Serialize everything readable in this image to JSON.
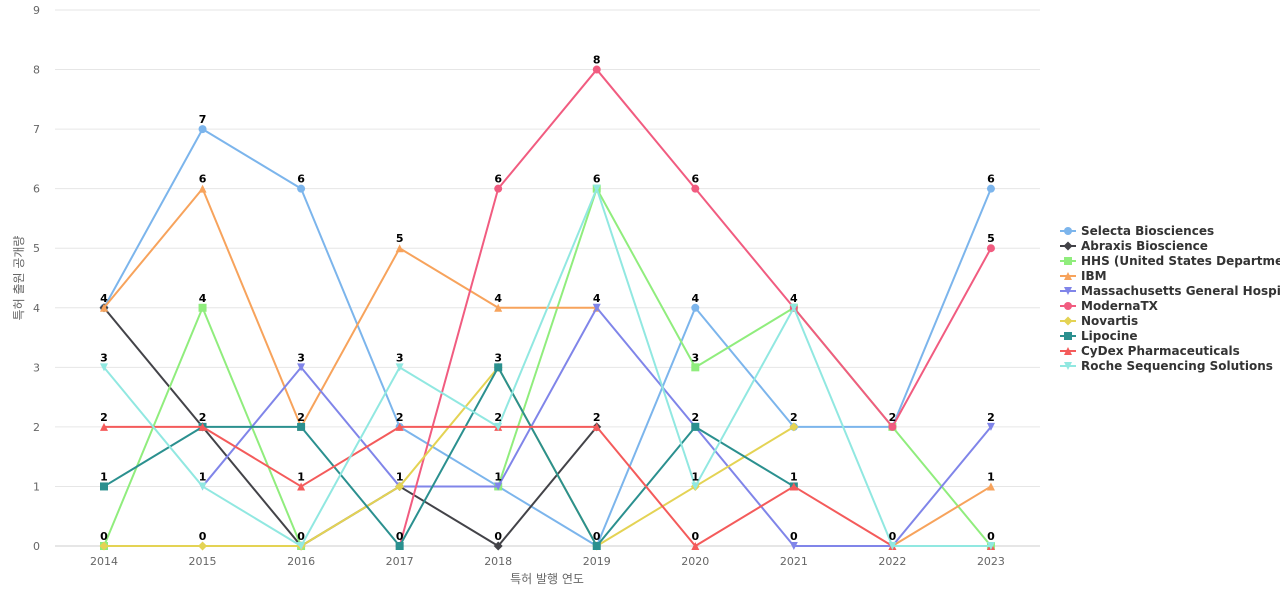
{
  "chart_data": {
    "type": "line",
    "title": "",
    "xlabel": "특허 발행 연도",
    "ylabel": "특허 출원 공개량",
    "x": [
      "2014",
      "2015",
      "2016",
      "2017",
      "2018",
      "2019",
      "2020",
      "2021",
      "2022",
      "2023"
    ],
    "y_ticks": [
      0,
      1,
      2,
      3,
      4,
      5,
      6,
      7,
      8,
      9
    ],
    "ylim": [
      0,
      9
    ],
    "grid": true,
    "legend_position": "right",
    "series": [
      {
        "name": "Selecta Biosciences",
        "legend_label": "Selecta Biosciences",
        "color": "#7cb5ec",
        "marker": "circle",
        "values": [
          4,
          7,
          6,
          2,
          1,
          0,
          4,
          2,
          2,
          6
        ]
      },
      {
        "name": "Abraxis Bioscience",
        "legend_label": "Abraxis Bioscience",
        "color": "#434348",
        "marker": "diamond",
        "values": [
          4,
          2,
          0,
          1,
          0,
          2,
          null,
          null,
          null,
          null
        ]
      },
      {
        "name": "HHS (United States Department of Health and Human Services)",
        "legend_label": "HHS (United States Departme...",
        "color": "#90ed7d",
        "marker": "square",
        "values": [
          0,
          4,
          0,
          null,
          1,
          6,
          3,
          4,
          2,
          0
        ]
      },
      {
        "name": "IBM",
        "legend_label": "IBM",
        "color": "#f7a35c",
        "marker": "triangle",
        "values": [
          4,
          6,
          2,
          5,
          4,
          4,
          null,
          null,
          0,
          1
        ]
      },
      {
        "name": "Massachusetts General Hospital",
        "legend_label": "Massachusetts General Hospi...",
        "color": "#8085e9",
        "marker": "triangle-down",
        "values": [
          null,
          1,
          3,
          1,
          1,
          4,
          2,
          0,
          0,
          2
        ]
      },
      {
        "name": "ModernaTX",
        "legend_label": "ModernaTX",
        "color": "#f15c80",
        "marker": "circle",
        "values": [
          null,
          null,
          null,
          0,
          6,
          8,
          6,
          4,
          2,
          5
        ]
      },
      {
        "name": "Novartis",
        "legend_label": "Novartis",
        "color": "#e4d354",
        "marker": "diamond",
        "values": [
          0,
          0,
          0,
          1,
          3,
          0,
          1,
          2,
          null,
          null
        ]
      },
      {
        "name": "Lipocine",
        "legend_label": "Lipocine",
        "color": "#2b908f",
        "marker": "square",
        "values": [
          1,
          2,
          2,
          0,
          3,
          0,
          2,
          1,
          null,
          null
        ]
      },
      {
        "name": "CyDex Pharmaceuticals",
        "legend_label": "CyDex Pharmaceuticals",
        "color": "#f45b5b",
        "marker": "triangle",
        "values": [
          2,
          2,
          1,
          2,
          2,
          2,
          0,
          1,
          0,
          0
        ]
      },
      {
        "name": "Roche Sequencing Solutions",
        "legend_label": "Roche Sequencing Solutions",
        "color": "#91e8e1",
        "marker": "triangle-down",
        "values": [
          3,
          1,
          0,
          3,
          2,
          6,
          1,
          4,
          0,
          0
        ]
      }
    ],
    "data_labels": [
      {
        "x": "2014",
        "y": 4,
        "text": "4"
      },
      {
        "x": "2014",
        "y": 3,
        "text": "3"
      },
      {
        "x": "2014",
        "y": 2,
        "text": "2"
      },
      {
        "x": "2014",
        "y": 1,
        "text": "1"
      },
      {
        "x": "2014",
        "y": 0,
        "text": "0"
      },
      {
        "x": "2015",
        "y": 7,
        "text": "7"
      },
      {
        "x": "2015",
        "y": 6,
        "text": "6"
      },
      {
        "x": "2015",
        "y": 4,
        "text": "4"
      },
      {
        "x": "2015",
        "y": 2,
        "text": "2"
      },
      {
        "x": "2015",
        "y": 1,
        "text": "1"
      },
      {
        "x": "2015",
        "y": 0,
        "text": "0"
      },
      {
        "x": "2016",
        "y": 6,
        "text": "6"
      },
      {
        "x": "2016",
        "y": 3,
        "text": "3"
      },
      {
        "x": "2016",
        "y": 2,
        "text": "2"
      },
      {
        "x": "2016",
        "y": 1,
        "text": "1"
      },
      {
        "x": "2016",
        "y": 0,
        "text": "0"
      },
      {
        "x": "2017",
        "y": 5,
        "text": "5"
      },
      {
        "x": "2017",
        "y": 3,
        "text": "3"
      },
      {
        "x": "2017",
        "y": 2,
        "text": "2"
      },
      {
        "x": "2017",
        "y": 1,
        "text": "1"
      },
      {
        "x": "2017",
        "y": 0,
        "text": "0"
      },
      {
        "x": "2018",
        "y": 6,
        "text": "6"
      },
      {
        "x": "2018",
        "y": 4,
        "text": "4"
      },
      {
        "x": "2018",
        "y": 3,
        "text": "3"
      },
      {
        "x": "2018",
        "y": 2,
        "text": "2"
      },
      {
        "x": "2018",
        "y": 1,
        "text": "1"
      },
      {
        "x": "2018",
        "y": 0,
        "text": "0"
      },
      {
        "x": "2019",
        "y": 8,
        "text": "8"
      },
      {
        "x": "2019",
        "y": 6,
        "text": "6"
      },
      {
        "x": "2019",
        "y": 4,
        "text": "4"
      },
      {
        "x": "2019",
        "y": 2,
        "text": "2"
      },
      {
        "x": "2019",
        "y": 0,
        "text": "0"
      },
      {
        "x": "2020",
        "y": 6,
        "text": "6"
      },
      {
        "x": "2020",
        "y": 4,
        "text": "4"
      },
      {
        "x": "2020",
        "y": 3,
        "text": "3"
      },
      {
        "x": "2020",
        "y": 2,
        "text": "2"
      },
      {
        "x": "2020",
        "y": 1,
        "text": "1"
      },
      {
        "x": "2020",
        "y": 0,
        "text": "0"
      },
      {
        "x": "2021",
        "y": 4,
        "text": "4"
      },
      {
        "x": "2021",
        "y": 2,
        "text": "2"
      },
      {
        "x": "2021",
        "y": 1,
        "text": "1"
      },
      {
        "x": "2021",
        "y": 0,
        "text": "0"
      },
      {
        "x": "2022",
        "y": 2,
        "text": "2"
      },
      {
        "x": "2022",
        "y": 0,
        "text": "0"
      },
      {
        "x": "2023",
        "y": 6,
        "text": "6"
      },
      {
        "x": "2023",
        "y": 5,
        "text": "5"
      },
      {
        "x": "2023",
        "y": 2,
        "text": "2"
      },
      {
        "x": "2023",
        "y": 1,
        "text": "1"
      },
      {
        "x": "2023",
        "y": 0,
        "text": "0"
      }
    ]
  }
}
